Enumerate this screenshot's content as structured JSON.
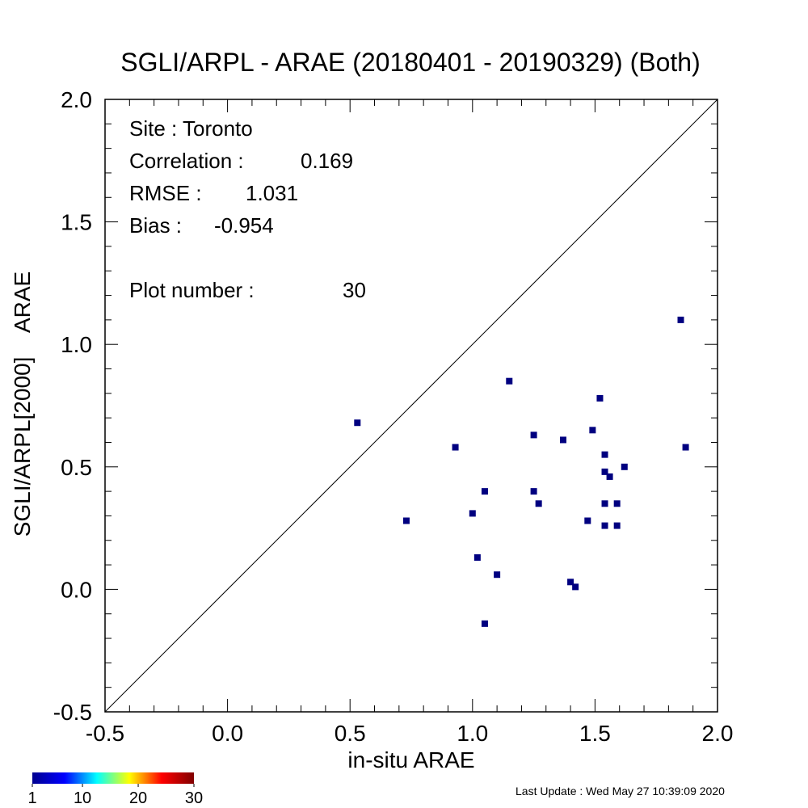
{
  "chart_data": {
    "type": "scatter",
    "title": "SGLI/ARPL - ARAE (20180401 - 20190329) (Both)",
    "xlabel": "in-situ ARAE",
    "ylabel": "SGLI/ARPL[2000]    ARAE",
    "xlim": [
      -0.5,
      2.0
    ],
    "ylim": [
      -0.5,
      2.0
    ],
    "x_ticks": [
      "-0.5",
      "0.0",
      "0.5",
      "1.0",
      "1.5",
      "2.0"
    ],
    "y_ticks": [
      "-0.5",
      "0.0",
      "0.5",
      "1.0",
      "1.5",
      "2.0"
    ],
    "one_to_one_line": true,
    "grid": false,
    "marker_color": "#000080",
    "points": [
      {
        "x": 0.53,
        "y": 0.68
      },
      {
        "x": 0.73,
        "y": 0.28
      },
      {
        "x": 0.93,
        "y": 0.58
      },
      {
        "x": 1.0,
        "y": 0.31
      },
      {
        "x": 1.02,
        "y": 0.13
      },
      {
        "x": 1.05,
        "y": 0.4
      },
      {
        "x": 1.05,
        "y": -0.14
      },
      {
        "x": 1.1,
        "y": 0.06
      },
      {
        "x": 1.15,
        "y": 0.85
      },
      {
        "x": 1.25,
        "y": 0.63
      },
      {
        "x": 1.25,
        "y": 0.4
      },
      {
        "x": 1.27,
        "y": 0.35
      },
      {
        "x": 1.37,
        "y": 0.61
      },
      {
        "x": 1.4,
        "y": 0.03
      },
      {
        "x": 1.42,
        "y": 0.01
      },
      {
        "x": 1.47,
        "y": 0.28
      },
      {
        "x": 1.49,
        "y": 0.65
      },
      {
        "x": 1.52,
        "y": 0.78
      },
      {
        "x": 1.54,
        "y": 0.55
      },
      {
        "x": 1.54,
        "y": 0.48
      },
      {
        "x": 1.54,
        "y": 0.35
      },
      {
        "x": 1.54,
        "y": 0.26
      },
      {
        "x": 1.56,
        "y": 0.46
      },
      {
        "x": 1.59,
        "y": 0.35
      },
      {
        "x": 1.59,
        "y": 0.26
      },
      {
        "x": 1.62,
        "y": 0.5
      },
      {
        "x": 1.85,
        "y": 1.1
      },
      {
        "x": 1.87,
        "y": 0.58
      }
    ],
    "annotations": {
      "site": "Site : Toronto",
      "correlation_label": "Correlation :",
      "correlation_value": "0.169",
      "rmse_label": "RMSE :",
      "rmse_value": "1.031",
      "bias_label": "Bias :",
      "bias_value": "-0.954",
      "plot_number_label": "Plot number :",
      "plot_number_value": "30"
    },
    "colorbar": {
      "ticks": [
        "1",
        "10",
        "20",
        "30"
      ],
      "colors": [
        "#00008f",
        "#0000ff",
        "#00ffff",
        "#ffff00",
        "#ff0000",
        "#800000"
      ]
    }
  },
  "footer": {
    "last_update": "Last Update : Wed May 27 10:39:09 2020"
  }
}
